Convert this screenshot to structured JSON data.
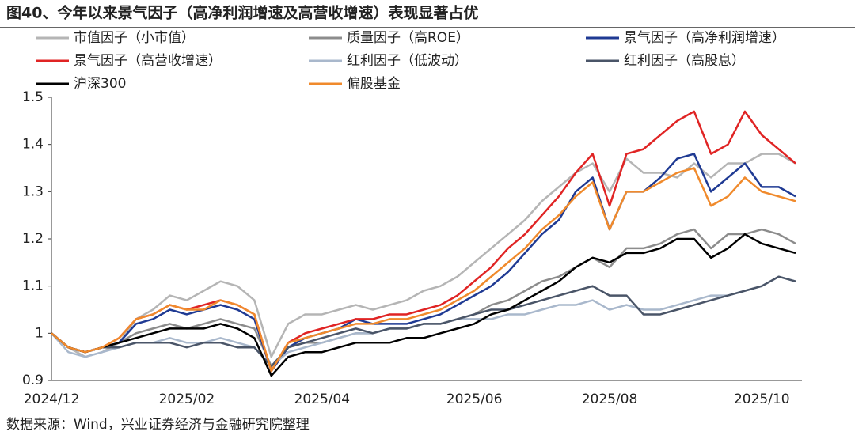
{
  "chart_data": {
    "type": "line",
    "title": "图40、今年以来景气因子（高净利润增速及高营收增速）表现显著占优",
    "source": "数据来源：Wind，兴业证券经济与金融研究院整理",
    "categories": [
      "2024/12",
      null,
      null,
      null,
      null,
      null,
      null,
      null,
      "2025/02",
      null,
      null,
      null,
      null,
      null,
      null,
      null,
      "2025/04",
      null,
      null,
      null,
      null,
      null,
      null,
      null,
      null,
      "2025/06",
      null,
      null,
      null,
      null,
      null,
      null,
      null,
      "2025/08",
      null,
      null,
      null,
      null,
      null,
      null,
      null,
      null,
      "2025/10",
      null,
      null
    ],
    "ylim": [
      0.9,
      1.5
    ],
    "yticks": [
      0.9,
      1,
      1.1,
      1.2,
      1.3,
      1.4,
      1.5
    ],
    "grid": false,
    "series": [
      {
        "name": "市值因子（小市值）",
        "color": "#b5b5b5",
        "values": [
          1.0,
          0.97,
          0.95,
          0.96,
          0.98,
          1.03,
          1.05,
          1.08,
          1.07,
          1.09,
          1.11,
          1.1,
          1.07,
          0.95,
          1.02,
          1.04,
          1.04,
          1.05,
          1.06,
          1.05,
          1.06,
          1.07,
          1.09,
          1.1,
          1.12,
          1.15,
          1.18,
          1.21,
          1.24,
          1.28,
          1.31,
          1.34,
          1.36,
          1.3,
          1.37,
          1.34,
          1.34,
          1.33,
          1.36,
          1.33,
          1.36,
          1.36,
          1.38,
          1.38,
          1.36
        ]
      },
      {
        "name": "质量因子（高ROE）",
        "color": "#8c8c8c",
        "values": [
          1.0,
          0.97,
          0.96,
          0.97,
          0.98,
          1.0,
          1.01,
          1.02,
          1.01,
          1.02,
          1.03,
          1.02,
          1.01,
          0.93,
          0.97,
          0.98,
          0.98,
          0.99,
          1.0,
          1.0,
          1.01,
          1.01,
          1.02,
          1.02,
          1.03,
          1.04,
          1.06,
          1.07,
          1.09,
          1.11,
          1.12,
          1.14,
          1.16,
          1.14,
          1.18,
          1.18,
          1.19,
          1.21,
          1.22,
          1.18,
          1.21,
          1.21,
          1.22,
          1.21,
          1.19
        ]
      },
      {
        "name": "景气因子（高净利润增速）",
        "color": "#1f3a93",
        "values": [
          1.0,
          0.97,
          0.96,
          0.97,
          0.98,
          1.02,
          1.03,
          1.05,
          1.04,
          1.05,
          1.06,
          1.05,
          1.03,
          0.92,
          0.97,
          0.99,
          1.0,
          1.01,
          1.03,
          1.02,
          1.02,
          1.02,
          1.03,
          1.04,
          1.06,
          1.08,
          1.1,
          1.13,
          1.17,
          1.21,
          1.24,
          1.3,
          1.33,
          1.22,
          1.3,
          1.3,
          1.33,
          1.37,
          1.38,
          1.3,
          1.33,
          1.36,
          1.31,
          1.31,
          1.29
        ]
      },
      {
        "name": "景气因子（高营收增速）",
        "color": "#e02424",
        "values": [
          1.0,
          0.97,
          0.96,
          0.97,
          0.99,
          1.03,
          1.04,
          1.06,
          1.05,
          1.06,
          1.07,
          1.06,
          1.04,
          0.92,
          0.98,
          1.0,
          1.01,
          1.02,
          1.03,
          1.03,
          1.04,
          1.04,
          1.05,
          1.06,
          1.08,
          1.11,
          1.14,
          1.18,
          1.21,
          1.25,
          1.29,
          1.34,
          1.38,
          1.27,
          1.38,
          1.39,
          1.42,
          1.45,
          1.47,
          1.38,
          1.4,
          1.47,
          1.42,
          1.39,
          1.36
        ]
      },
      {
        "name": "红利因子（低波动）",
        "color": "#a9b8cc",
        "values": [
          1.0,
          0.96,
          0.95,
          0.96,
          0.97,
          0.98,
          0.98,
          0.99,
          0.98,
          0.98,
          0.99,
          0.98,
          0.97,
          0.93,
          0.96,
          0.97,
          0.98,
          0.99,
          1.0,
          1.0,
          1.01,
          1.01,
          1.02,
          1.02,
          1.03,
          1.03,
          1.03,
          1.04,
          1.04,
          1.05,
          1.06,
          1.06,
          1.07,
          1.05,
          1.06,
          1.05,
          1.05,
          1.06,
          1.07,
          1.08,
          1.08,
          1.09,
          1.1,
          1.12,
          1.11
        ]
      },
      {
        "name": "红利因子（高股息）",
        "color": "#4a5568",
        "values": [
          1.0,
          0.97,
          0.96,
          0.97,
          0.97,
          0.98,
          0.98,
          0.98,
          0.97,
          0.98,
          0.98,
          0.97,
          0.97,
          0.93,
          0.97,
          0.98,
          0.99,
          1.0,
          1.01,
          1.0,
          1.01,
          1.01,
          1.02,
          1.02,
          1.03,
          1.04,
          1.05,
          1.05,
          1.06,
          1.07,
          1.08,
          1.09,
          1.1,
          1.08,
          1.08,
          1.04,
          1.04,
          1.05,
          1.06,
          1.07,
          1.08,
          1.09,
          1.1,
          1.12,
          1.11
        ]
      },
      {
        "name": "沪深300",
        "color": "#000000",
        "values": [
          1.0,
          0.97,
          0.96,
          0.97,
          0.98,
          0.99,
          1.0,
          1.01,
          1.01,
          1.01,
          1.02,
          1.01,
          0.99,
          0.91,
          0.95,
          0.96,
          0.96,
          0.97,
          0.98,
          0.98,
          0.98,
          0.99,
          0.99,
          1.0,
          1.01,
          1.02,
          1.04,
          1.05,
          1.07,
          1.09,
          1.11,
          1.14,
          1.16,
          1.15,
          1.17,
          1.17,
          1.18,
          1.2,
          1.2,
          1.16,
          1.18,
          1.21,
          1.19,
          1.18,
          1.17
        ]
      },
      {
        "name": "偏股基金",
        "color": "#f08a2c",
        "values": [
          1.0,
          0.97,
          0.96,
          0.97,
          0.99,
          1.03,
          1.04,
          1.06,
          1.05,
          1.05,
          1.07,
          1.06,
          1.04,
          0.92,
          0.98,
          0.99,
          1.0,
          1.01,
          1.02,
          1.02,
          1.03,
          1.03,
          1.04,
          1.05,
          1.07,
          1.09,
          1.12,
          1.15,
          1.18,
          1.22,
          1.25,
          1.29,
          1.32,
          1.22,
          1.3,
          1.3,
          1.32,
          1.34,
          1.35,
          1.27,
          1.29,
          1.33,
          1.3,
          1.29,
          1.28
        ]
      }
    ]
  }
}
